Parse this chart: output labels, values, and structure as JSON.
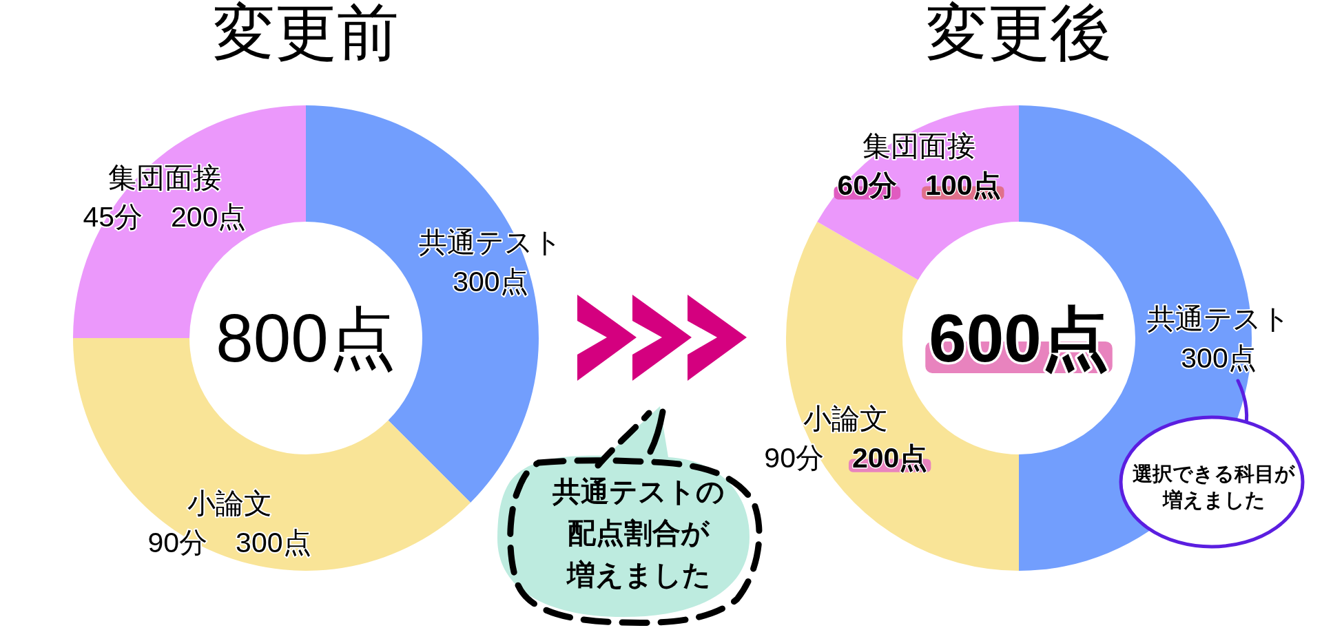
{
  "chart_data": [
    {
      "type": "donut",
      "title": "変更前",
      "categories": [
        "共通テスト",
        "小論文",
        "集団面接"
      ],
      "values": [
        300,
        300,
        200
      ],
      "colors": [
        "#729efd",
        "#f9e497",
        "#eb98fb"
      ],
      "value_labels": [
        "300点",
        "90分　300点",
        "45分　200点"
      ],
      "annotations": [
        "800点"
      ]
    },
    {
      "type": "donut",
      "title": "変更後",
      "categories": [
        "共通テスト",
        "小論文",
        "集団面接"
      ],
      "values": [
        300,
        200,
        100
      ],
      "colors": [
        "#729efd",
        "#f9e497",
        "#eb98fb"
      ],
      "value_labels": [
        "300点",
        "90分　**200点**",
        "**60分**　**100点**"
      ],
      "annotations": [
        "**600点**",
        "共通テストの配点割合が増えました",
        "選択できる科目が増えました"
      ]
    }
  ]
}
